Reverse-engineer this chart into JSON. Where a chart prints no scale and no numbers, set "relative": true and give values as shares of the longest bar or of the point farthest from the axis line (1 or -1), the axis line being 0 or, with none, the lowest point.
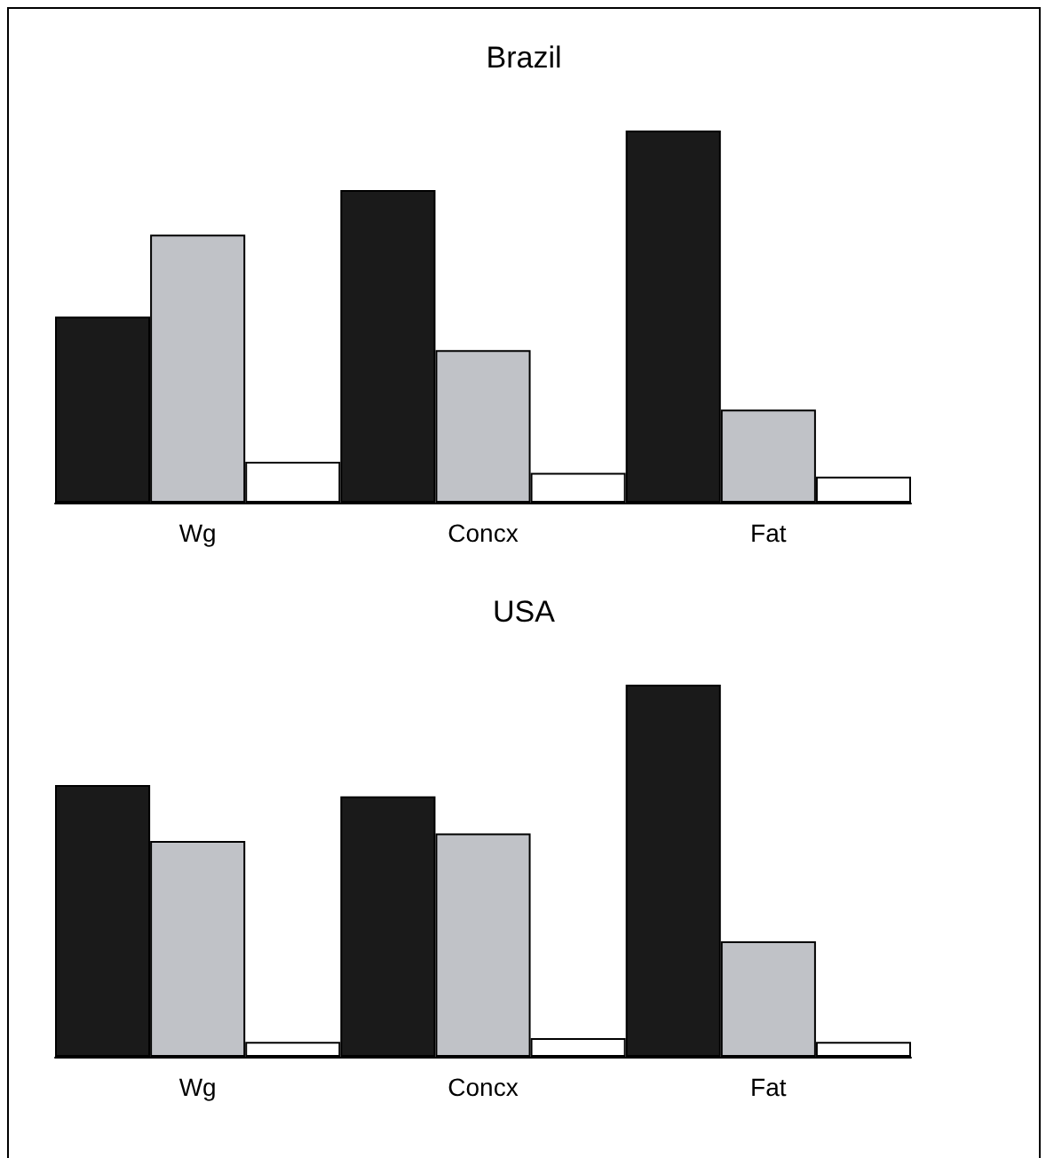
{
  "chart_data": [
    {
      "type": "bar",
      "title": "Brazil",
      "categories": [
        "Wg",
        "Concx",
        "Fat"
      ],
      "relative": true,
      "series": [
        {
          "color": "#1a1a1a",
          "values": [
            0.5,
            0.84,
            1
          ]
        },
        {
          "color": "#c0c2c7",
          "values": [
            0.72,
            0.41,
            0.25
          ]
        },
        {
          "color": "#ffffff",
          "values": [
            0.11,
            0.08,
            0.07
          ]
        }
      ]
    },
    {
      "type": "bar",
      "title": "USA",
      "categories": [
        "Wg",
        "Concx",
        "Fat"
      ],
      "relative": true,
      "series": [
        {
          "color": "#1a1a1a",
          "values": [
            0.73,
            0.7,
            1
          ]
        },
        {
          "color": "#c0c2c7",
          "values": [
            0.58,
            0.6,
            0.31
          ]
        },
        {
          "color": "#ffffff",
          "values": [
            0.04,
            0.05,
            0.04
          ]
        }
      ]
    }
  ]
}
